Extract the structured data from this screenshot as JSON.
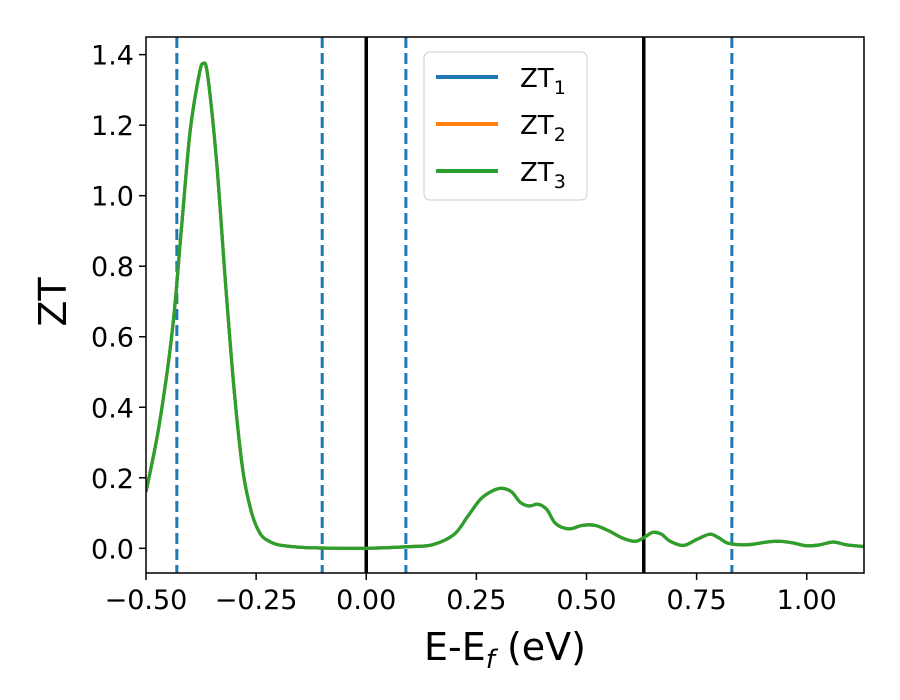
{
  "chart_data": {
    "type": "line",
    "title": "",
    "xlabel": "E-E",
    "xlabel_sub": "f",
    "xlabel_unit": " (eV)",
    "ylabel": "ZT",
    "xlim": [
      -0.5,
      1.13
    ],
    "ylim": [
      -0.07,
      1.45
    ],
    "x_ticks": [
      -0.5,
      -0.25,
      0.0,
      0.25,
      0.5,
      0.75,
      1.0
    ],
    "x_tick_labels": [
      "−0.50",
      "−0.25",
      "0.00",
      "0.25",
      "0.50",
      "0.75",
      "1.00"
    ],
    "y_ticks": [
      0.0,
      0.2,
      0.4,
      0.6,
      0.8,
      1.0,
      1.2,
      1.4
    ],
    "y_tick_labels": [
      "0.0",
      "0.2",
      "0.4",
      "0.6",
      "0.8",
      "1.0",
      "1.2",
      "1.4"
    ],
    "grid": false,
    "legend_position": "top-center",
    "x": [
      -0.5,
      -0.47,
      -0.44,
      -0.42,
      -0.4,
      -0.38,
      -0.37,
      -0.36,
      -0.34,
      -0.32,
      -0.3,
      -0.28,
      -0.26,
      -0.24,
      -0.22,
      -0.2,
      -0.15,
      -0.1,
      -0.05,
      0.0,
      0.05,
      0.1,
      0.15,
      0.2,
      0.23,
      0.26,
      0.29,
      0.31,
      0.33,
      0.35,
      0.37,
      0.39,
      0.41,
      0.43,
      0.46,
      0.49,
      0.52,
      0.55,
      0.58,
      0.61,
      0.63,
      0.65,
      0.67,
      0.69,
      0.72,
      0.75,
      0.78,
      0.8,
      0.82,
      0.85,
      0.88,
      0.91,
      0.94,
      0.97,
      1.0,
      1.03,
      1.06,
      1.09,
      1.13
    ],
    "series": [
      {
        "name": "ZT₁",
        "label_main": "ZT",
        "label_sub": "1",
        "color": "#1f77b4",
        "values": [
          0.16,
          0.35,
          0.62,
          0.9,
          1.18,
          1.34,
          1.375,
          1.34,
          1.1,
          0.76,
          0.45,
          0.22,
          0.1,
          0.04,
          0.02,
          0.01,
          0.003,
          0.001,
          0.0,
          0.0,
          0.002,
          0.005,
          0.01,
          0.04,
          0.09,
          0.14,
          0.165,
          0.17,
          0.16,
          0.13,
          0.12,
          0.125,
          0.11,
          0.07,
          0.055,
          0.065,
          0.065,
          0.05,
          0.03,
          0.02,
          0.03,
          0.045,
          0.04,
          0.02,
          0.008,
          0.025,
          0.04,
          0.03,
          0.015,
          0.01,
          0.012,
          0.018,
          0.02,
          0.015,
          0.007,
          0.01,
          0.018,
          0.01,
          0.005
        ]
      },
      {
        "name": "ZT₂",
        "label_main": "ZT",
        "label_sub": "2",
        "color": "#ff7f0e",
        "values": [
          0.16,
          0.35,
          0.62,
          0.9,
          1.18,
          1.34,
          1.375,
          1.34,
          1.1,
          0.76,
          0.45,
          0.22,
          0.1,
          0.04,
          0.02,
          0.01,
          0.003,
          0.001,
          0.0,
          0.0,
          0.002,
          0.005,
          0.01,
          0.04,
          0.09,
          0.14,
          0.165,
          0.17,
          0.16,
          0.13,
          0.12,
          0.125,
          0.11,
          0.07,
          0.055,
          0.065,
          0.065,
          0.05,
          0.03,
          0.02,
          0.03,
          0.045,
          0.04,
          0.02,
          0.008,
          0.025,
          0.04,
          0.03,
          0.015,
          0.01,
          0.012,
          0.018,
          0.02,
          0.015,
          0.007,
          0.01,
          0.018,
          0.01,
          0.005
        ]
      },
      {
        "name": "ZT₃",
        "label_main": "ZT",
        "label_sub": "3",
        "color": "#2ca02c",
        "values": [
          0.16,
          0.35,
          0.62,
          0.9,
          1.18,
          1.34,
          1.375,
          1.34,
          1.1,
          0.76,
          0.45,
          0.22,
          0.1,
          0.04,
          0.02,
          0.01,
          0.003,
          0.001,
          0.0,
          0.0,
          0.002,
          0.005,
          0.01,
          0.04,
          0.09,
          0.14,
          0.165,
          0.17,
          0.16,
          0.13,
          0.12,
          0.125,
          0.11,
          0.07,
          0.055,
          0.065,
          0.065,
          0.05,
          0.03,
          0.02,
          0.03,
          0.045,
          0.04,
          0.02,
          0.008,
          0.025,
          0.04,
          0.03,
          0.015,
          0.01,
          0.012,
          0.018,
          0.02,
          0.015,
          0.007,
          0.01,
          0.018,
          0.01,
          0.005
        ]
      }
    ],
    "vlines": [
      {
        "x": -0.43,
        "style": "dashed",
        "color": "#1f77b4"
      },
      {
        "x": -0.1,
        "style": "dashed",
        "color": "#1f77b4"
      },
      {
        "x": 0.0,
        "style": "solid",
        "color": "#000000"
      },
      {
        "x": 0.09,
        "style": "dashed",
        "color": "#1f77b4"
      },
      {
        "x": 0.63,
        "style": "solid",
        "color": "#000000"
      },
      {
        "x": 0.83,
        "style": "dashed",
        "color": "#1f77b4"
      }
    ]
  }
}
